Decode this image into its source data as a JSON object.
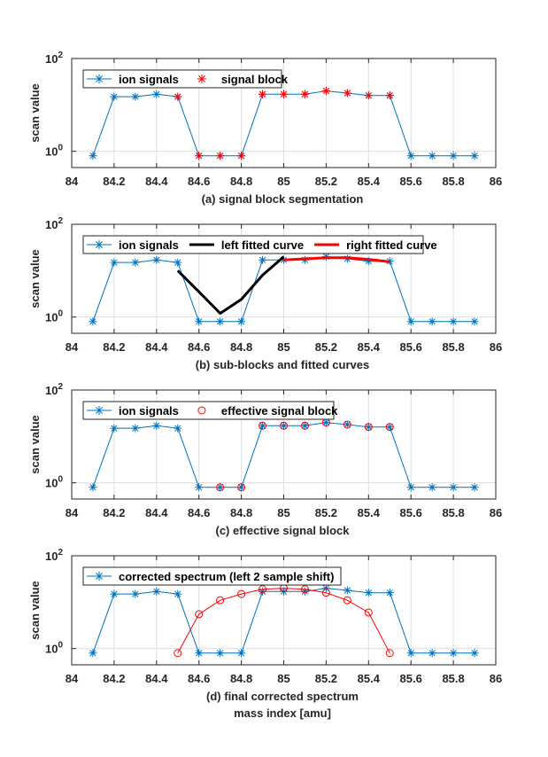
{
  "figure": {
    "xlabel": "mass index [amu]"
  },
  "chart_data": [
    {
      "type": "line",
      "caption": "(a) signal block segmentation",
      "ylabel": "scan value",
      "yscale": "log",
      "xlim": [
        84,
        86
      ],
      "xticks": [
        "84",
        "84.2",
        "84.4",
        "84.6",
        "84.8",
        "85",
        "85.2",
        "85.4",
        "85.6",
        "85.8",
        "86"
      ],
      "yticks": [
        {
          "base": "10",
          "exp": "0"
        },
        {
          "base": "10",
          "exp": "2"
        }
      ],
      "grid": true,
      "legend_position": "top-left",
      "series": [
        {
          "name": "ion signals",
          "style": "line-star",
          "color": "#0072BD",
          "x": [
            84.1,
            84.2,
            84.3,
            84.4,
            84.5,
            84.6,
            84.7,
            84.8,
            84.9,
            85.0,
            85.1,
            85.2,
            85.3,
            85.4,
            85.5,
            85.6,
            85.7,
            85.8,
            85.9
          ],
          "y": [
            0.8,
            15,
            15,
            17,
            15,
            0.8,
            0.8,
            0.8,
            17,
            17,
            17,
            20,
            18,
            16,
            16,
            0.8,
            0.8,
            0.8,
            0.8
          ]
        },
        {
          "name": "signal block",
          "style": "star",
          "color": "#FF0000",
          "x": [
            84.5,
            84.6,
            84.7,
            84.8,
            84.9,
            85.0,
            85.1,
            85.2,
            85.3,
            85.4,
            85.5
          ],
          "y": [
            15,
            0.8,
            0.8,
            0.8,
            17,
            17,
            17,
            20,
            18,
            16,
            16
          ]
        }
      ]
    },
    {
      "type": "line",
      "caption": "(b) sub-blocks and fitted curves",
      "ylabel": "scan value",
      "yscale": "log",
      "xlim": [
        84,
        86
      ],
      "xticks": [
        "84",
        "84.2",
        "84.4",
        "84.6",
        "84.8",
        "85",
        "85.2",
        "85.4",
        "85.6",
        "85.8",
        "86"
      ],
      "yticks": [
        {
          "base": "10",
          "exp": "0"
        },
        {
          "base": "10",
          "exp": "2"
        }
      ],
      "grid": true,
      "legend_position": "top",
      "series": [
        {
          "name": "ion signals",
          "style": "line-star",
          "color": "#0072BD",
          "x": [
            84.1,
            84.2,
            84.3,
            84.4,
            84.5,
            84.6,
            84.7,
            84.8,
            84.9,
            85.0,
            85.1,
            85.2,
            85.3,
            85.4,
            85.5,
            85.6,
            85.7,
            85.8,
            85.9
          ],
          "y": [
            0.8,
            15,
            15,
            17,
            15,
            0.8,
            0.8,
            0.8,
            17,
            17,
            17,
            20,
            18,
            16,
            16,
            0.8,
            0.8,
            0.8,
            0.8
          ]
        },
        {
          "name": "left fitted curve",
          "style": "line",
          "color": "#000000",
          "x": [
            84.5,
            84.6,
            84.7,
            84.8,
            84.9,
            85.0
          ],
          "y": [
            10,
            3.5,
            1.2,
            2.4,
            8,
            20
          ]
        },
        {
          "name": "right fitted curve",
          "style": "line",
          "color": "#FF0000",
          "x": [
            85.0,
            85.1,
            85.2,
            85.3,
            85.4,
            85.5
          ],
          "y": [
            17,
            18,
            19,
            19,
            17.5,
            15.5
          ]
        }
      ]
    },
    {
      "type": "line",
      "caption": "(c) effective signal block",
      "ylabel": "scan value",
      "yscale": "log",
      "xlim": [
        84,
        86
      ],
      "xticks": [
        "84",
        "84.2",
        "84.4",
        "84.6",
        "84.8",
        "85",
        "85.2",
        "85.4",
        "85.6",
        "85.8",
        "86"
      ],
      "yticks": [
        {
          "base": "10",
          "exp": "0"
        },
        {
          "base": "10",
          "exp": "2"
        }
      ],
      "grid": true,
      "legend_position": "top-left",
      "series": [
        {
          "name": "ion signals",
          "style": "line-star",
          "color": "#0072BD",
          "x": [
            84.1,
            84.2,
            84.3,
            84.4,
            84.5,
            84.6,
            84.7,
            84.8,
            84.9,
            85.0,
            85.1,
            85.2,
            85.3,
            85.4,
            85.5,
            85.6,
            85.7,
            85.8,
            85.9
          ],
          "y": [
            0.8,
            15,
            15,
            17,
            15,
            0.8,
            0.8,
            0.8,
            17,
            17,
            17,
            20,
            18,
            16,
            16,
            0.8,
            0.8,
            0.8,
            0.8
          ]
        },
        {
          "name": "effective signal block",
          "style": "circle",
          "color": "#FF0000",
          "x": [
            84.7,
            84.8,
            84.9,
            85.0,
            85.1,
            85.2,
            85.3,
            85.4,
            85.5
          ],
          "y": [
            0.8,
            0.8,
            17,
            17,
            17,
            20,
            18,
            16,
            16
          ]
        }
      ]
    },
    {
      "type": "line",
      "caption": "(d) final corrected spectrum",
      "ylabel": "scan value",
      "yscale": "log",
      "xlim": [
        84,
        86
      ],
      "xticks": [
        "84",
        "84.2",
        "84.4",
        "84.6",
        "84.8",
        "85",
        "85.2",
        "85.4",
        "85.6",
        "85.8",
        "86"
      ],
      "yticks": [
        {
          "base": "10",
          "exp": "0"
        },
        {
          "base": "10",
          "exp": "2"
        }
      ],
      "grid": true,
      "legend_position": "top-left",
      "series": [
        {
          "name": "corrected spectrum (left 2 sample shift)",
          "style": "line-star",
          "color": "#0072BD",
          "x": [
            84.1,
            84.2,
            84.3,
            84.4,
            84.5,
            84.6,
            84.7,
            84.8,
            84.9,
            85.0,
            85.1,
            85.2,
            85.3,
            85.4,
            85.5,
            85.6,
            85.7,
            85.8,
            85.9
          ],
          "y": [
            0.8,
            15,
            15,
            17,
            15,
            0.8,
            0.8,
            0.8,
            17,
            17,
            17,
            20,
            18,
            16,
            16,
            0.8,
            0.8,
            0.8,
            0.8
          ]
        },
        {
          "name": "",
          "style": "line-circle",
          "color": "#FF0000",
          "x": [
            84.5,
            84.6,
            84.7,
            84.8,
            84.9,
            85.0,
            85.1,
            85.2,
            85.3,
            85.4,
            85.5
          ],
          "y": [
            0.8,
            5.5,
            11,
            15,
            19,
            20,
            19,
            16,
            11,
            6,
            0.8
          ]
        }
      ]
    }
  ]
}
